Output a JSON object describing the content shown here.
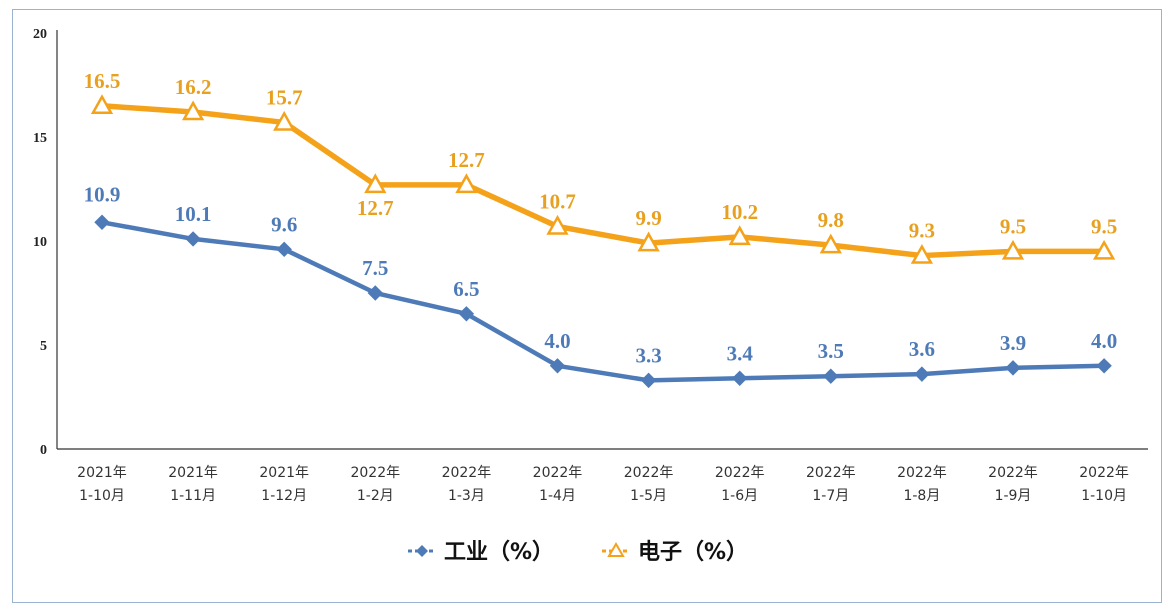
{
  "chart_data": {
    "type": "line",
    "categories": [
      [
        "2021年",
        "1-10月"
      ],
      [
        "2021年",
        "1-11月"
      ],
      [
        "2021年",
        "1-12月"
      ],
      [
        "2022年",
        "1-2月"
      ],
      [
        "2022年",
        "1-3月"
      ],
      [
        "2022年",
        "1-4月"
      ],
      [
        "2022年",
        "1-5月"
      ],
      [
        "2022年",
        "1-6月"
      ],
      [
        "2022年",
        "1-7月"
      ],
      [
        "2022年",
        "1-8月"
      ],
      [
        "2022年",
        "1-9月"
      ],
      [
        "2022年",
        "1-10月"
      ]
    ],
    "series": [
      {
        "name": "工业（%）",
        "color": "#4e7bb8",
        "marker": "diamond",
        "values": [
          10.9,
          10.1,
          9.6,
          7.5,
          6.5,
          4.0,
          3.3,
          3.4,
          3.5,
          3.6,
          3.9,
          4.0
        ],
        "labels": [
          "10.9",
          "10.1",
          "9.6",
          "7.5",
          "6.5",
          "4.0",
          "3.3",
          "3.4",
          "3.5",
          "3.6",
          "3.9",
          "4.0"
        ]
      },
      {
        "name": "电子（%）",
        "color": "#f5a21b",
        "marker": "triangle",
        "values": [
          16.5,
          16.2,
          15.7,
          12.7,
          12.7,
          10.7,
          9.9,
          10.2,
          9.8,
          9.3,
          9.5,
          9.5
        ],
        "labels": [
          "16.5",
          "16.2",
          "15.7",
          "12.7",
          "12.7",
          "10.7",
          "9.9",
          "10.2",
          "9.8",
          "9.3",
          "9.5",
          "9.5"
        ]
      }
    ],
    "yticks": [
      "0",
      "5",
      "10",
      "15",
      "20"
    ],
    "ylim": [
      0,
      20
    ],
    "grid": false,
    "legend_position": "bottom"
  }
}
